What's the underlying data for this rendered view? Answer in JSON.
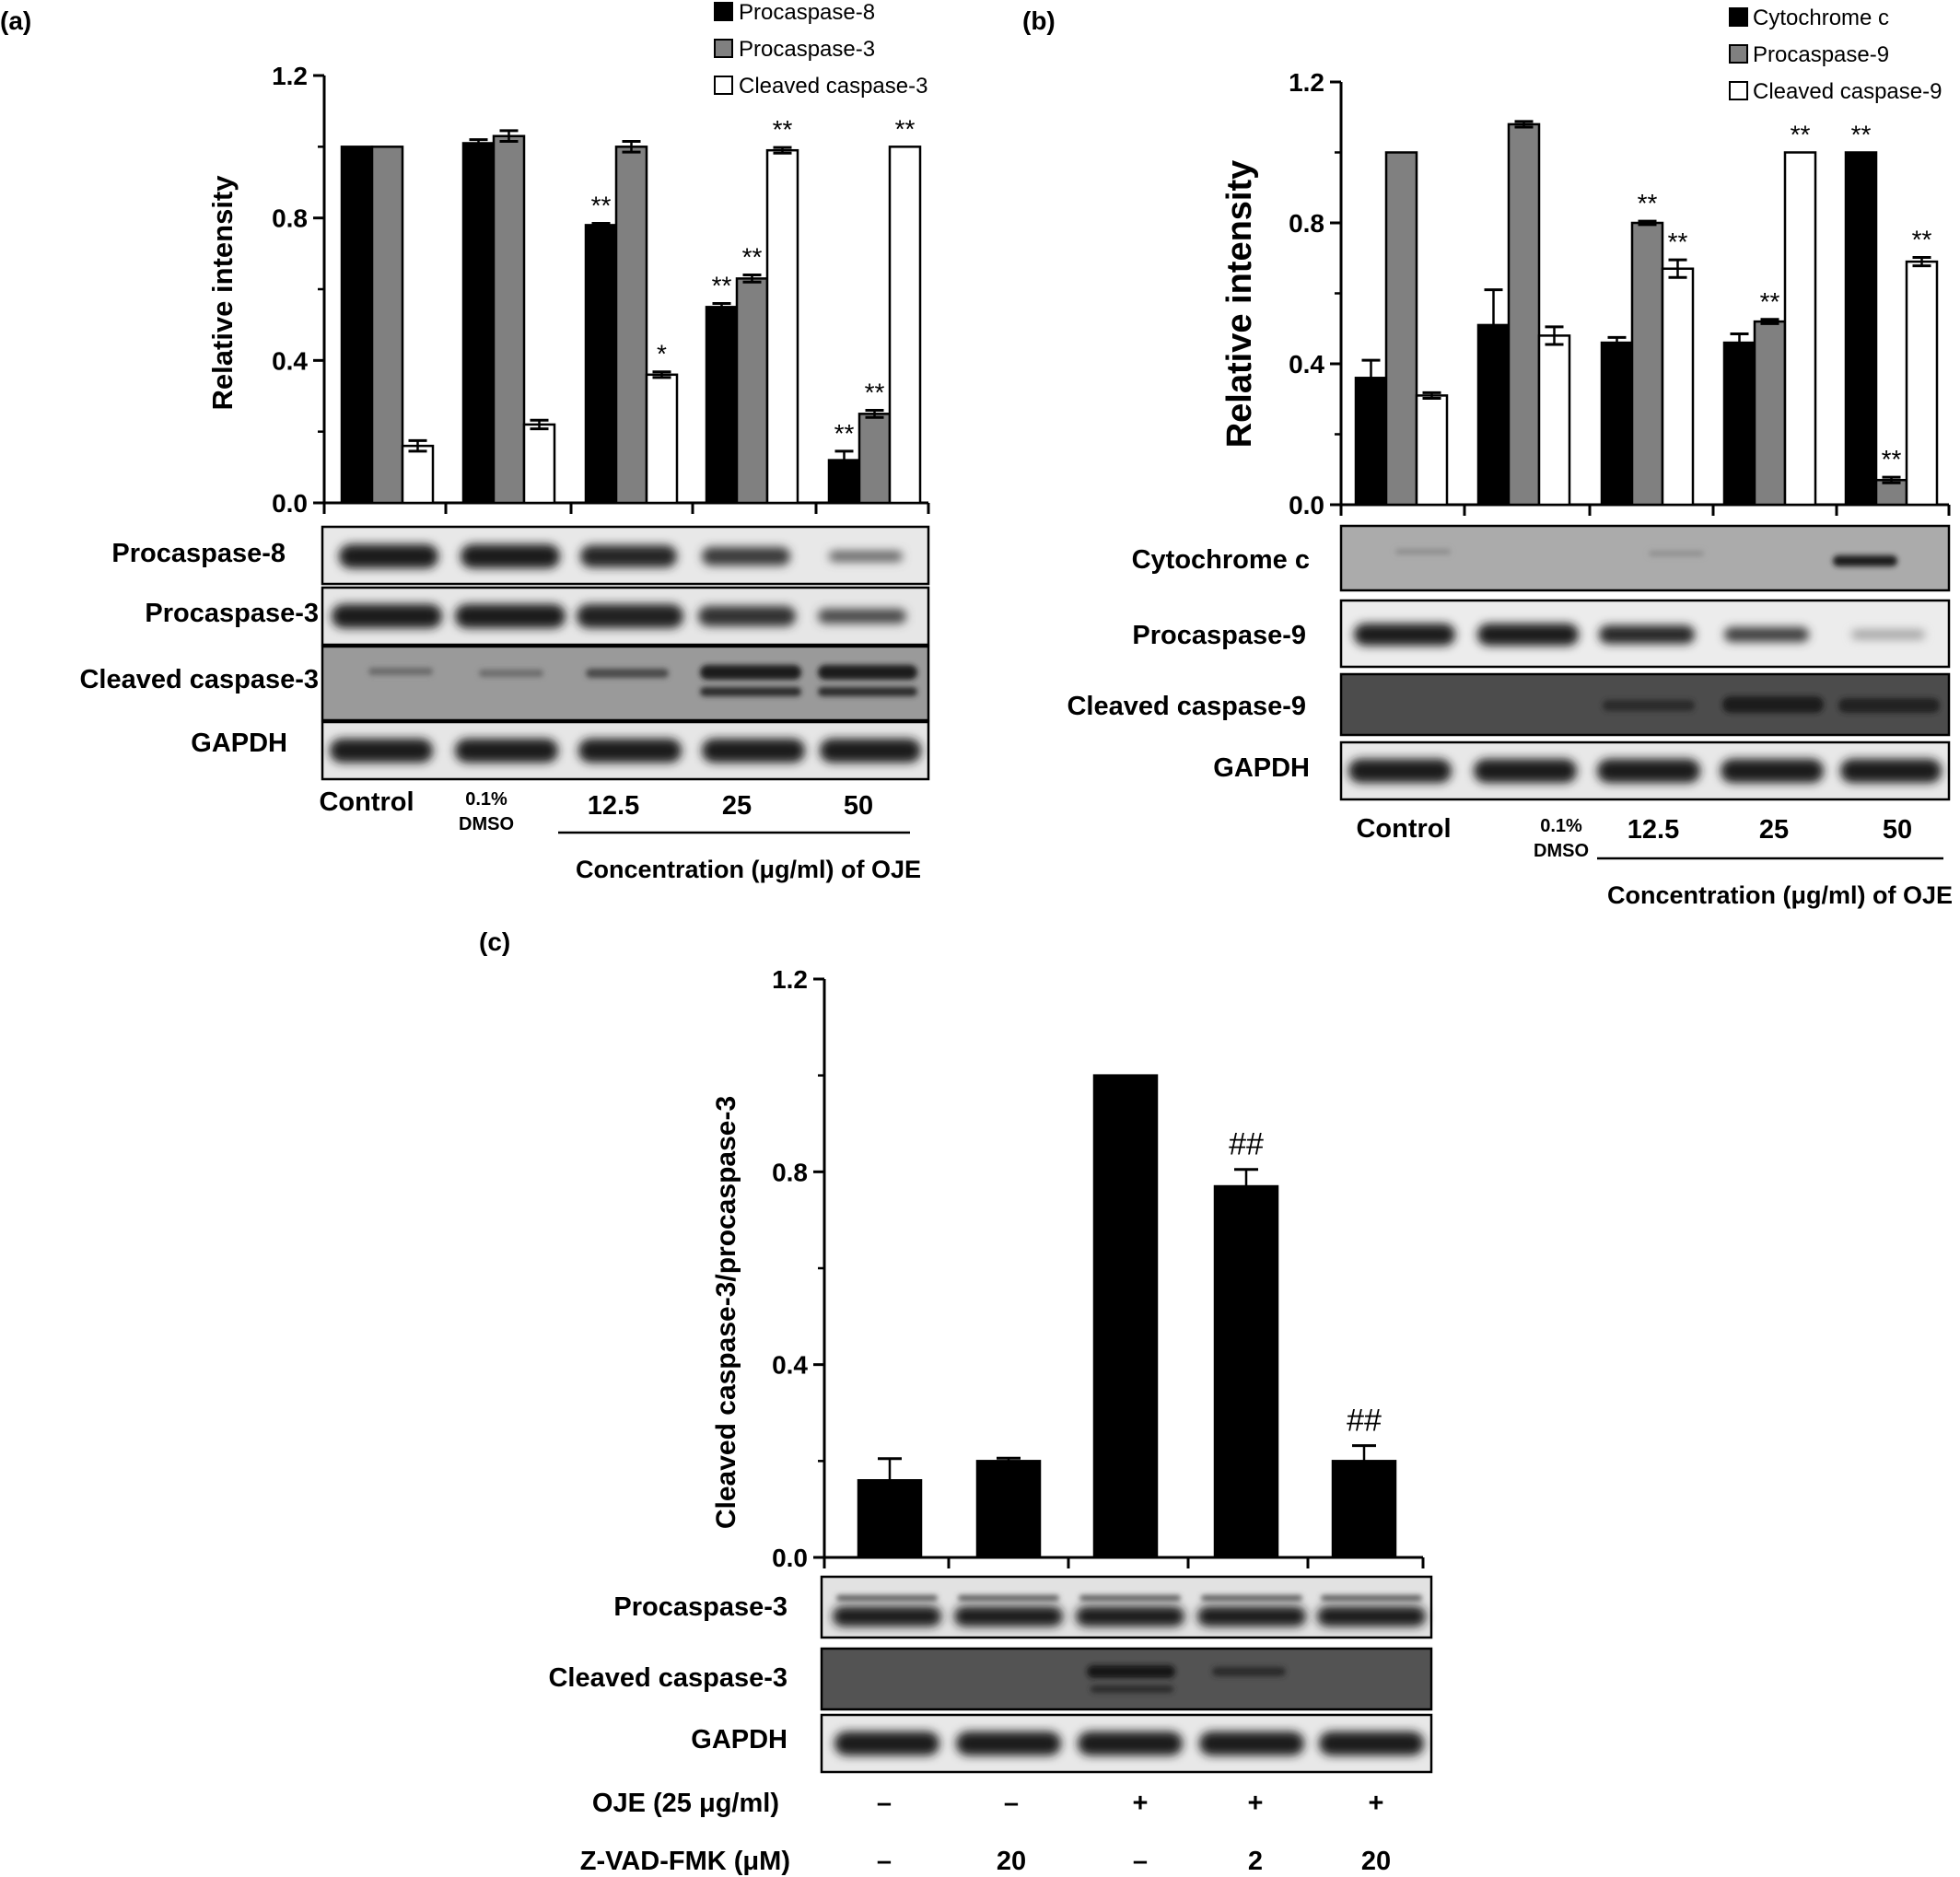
{
  "panels": [
    {
      "panel_label": "(a)",
      "blot_labels": [
        "Procaspase-8",
        "Procaspase-3",
        "Cleaved caspase-3",
        "GAPDH"
      ],
      "concentration_label": "Concentration (μg/ml) of OJE",
      "chart_data": {
        "type": "bar",
        "title": "",
        "xlabel": "",
        "ylabel": "Relative intensity",
        "ylim": [
          0,
          1.2
        ],
        "yticks": [
          "0.0",
          "0.4",
          "0.8",
          "1.2"
        ],
        "categories": [
          "Control",
          "0.1% DMSO",
          "12.5",
          "25",
          "50"
        ],
        "legend_position": "top-right",
        "series": [
          {
            "name": "Procaspase-8",
            "color": "#000000",
            "values": [
              1.0,
              1.01,
              0.78,
              0.55,
              0.12
            ],
            "errors": [
              0,
              0.01,
              0.005,
              0.01,
              0.025
            ],
            "annotations": [
              "",
              "",
              "**",
              "**",
              "**"
            ]
          },
          {
            "name": "Procaspase-3",
            "color": "#808080",
            "values": [
              1.0,
              1.03,
              1.0,
              0.63,
              0.25
            ],
            "errors": [
              0,
              0.015,
              0.015,
              0.01,
              0.01
            ],
            "annotations": [
              "",
              "",
              "",
              "**",
              "**"
            ]
          },
          {
            "name": "Cleaved caspase-3",
            "color": "#ffffff",
            "values": [
              0.16,
              0.22,
              0.36,
              0.99,
              1.0
            ],
            "errors": [
              0.015,
              0.012,
              0.008,
              0.008,
              0
            ],
            "annotations": [
              "",
              "",
              "*",
              "**",
              "**"
            ]
          }
        ]
      }
    },
    {
      "panel_label": "(b)",
      "blot_labels": [
        "Cytochrome c",
        "Procaspase-9",
        "Cleaved caspase-9",
        "GAPDH"
      ],
      "concentration_label": "Concentration (μg/ml) of OJE",
      "chart_data": {
        "type": "bar",
        "title": "",
        "xlabel": "",
        "ylabel": "Relative intensity",
        "ylim": [
          0,
          1.2
        ],
        "yticks": [
          "0.0",
          "0.4",
          "0.8",
          "1.2"
        ],
        "categories": [
          "Control",
          "0.1% DMSO",
          "12.5",
          "25",
          "50"
        ],
        "legend_position": "top-right",
        "series": [
          {
            "name": "Cytochrome c",
            "color": "#000000",
            "values": [
              0.36,
              0.51,
              0.46,
              0.46,
              1.0
            ],
            "errors": [
              0.05,
              0.1,
              0.015,
              0.025,
              0
            ],
            "annotations": [
              "",
              "",
              "",
              "",
              "**"
            ]
          },
          {
            "name": "Procaspase-9",
            "color": "#808080",
            "values": [
              1.0,
              1.08,
              0.8,
              0.52,
              0.07
            ],
            "errors": [
              0,
              0.008,
              0.005,
              0.006,
              0.008
            ],
            "annotations": [
              "",
              "",
              "**",
              "**",
              "**"
            ]
          },
          {
            "name": "Cleaved caspase-9",
            "color": "#ffffff",
            "values": [
              0.31,
              0.48,
              0.67,
              1.0,
              0.69
            ],
            "errors": [
              0.008,
              0.025,
              0.025,
              0,
              0.012
            ],
            "annotations": [
              "",
              "",
              "**",
              "**",
              "**"
            ]
          }
        ]
      }
    },
    {
      "panel_label": "(c)",
      "blot_labels": [
        "Procaspase-3",
        "Cleaved caspase-3",
        "GAPDH"
      ],
      "treatment_rows": [
        {
          "label": "OJE (25 μg/ml)",
          "values": [
            "–",
            "–",
            "+",
            "+",
            "+"
          ]
        },
        {
          "label": "Z-VAD-FMK (μM)",
          "values": [
            "–",
            "20",
            "–",
            "2",
            "20"
          ]
        }
      ],
      "chart_data": {
        "type": "bar",
        "title": "",
        "xlabel": "",
        "ylabel": "Cleaved caspase-3/procaspase-3",
        "ylim": [
          0,
          1.2
        ],
        "yticks": [
          "0.0",
          "0.4",
          "0.8",
          "1.2"
        ],
        "series": [
          {
            "name": "",
            "color": "#000000",
            "values": [
              0.16,
              0.2,
              1.0,
              0.77,
              0.2
            ],
            "errors": [
              0.045,
              0.006,
              0,
              0.035,
              0.032
            ],
            "annotations": [
              "",
              "",
              "",
              "##",
              "##"
            ]
          }
        ]
      }
    }
  ]
}
